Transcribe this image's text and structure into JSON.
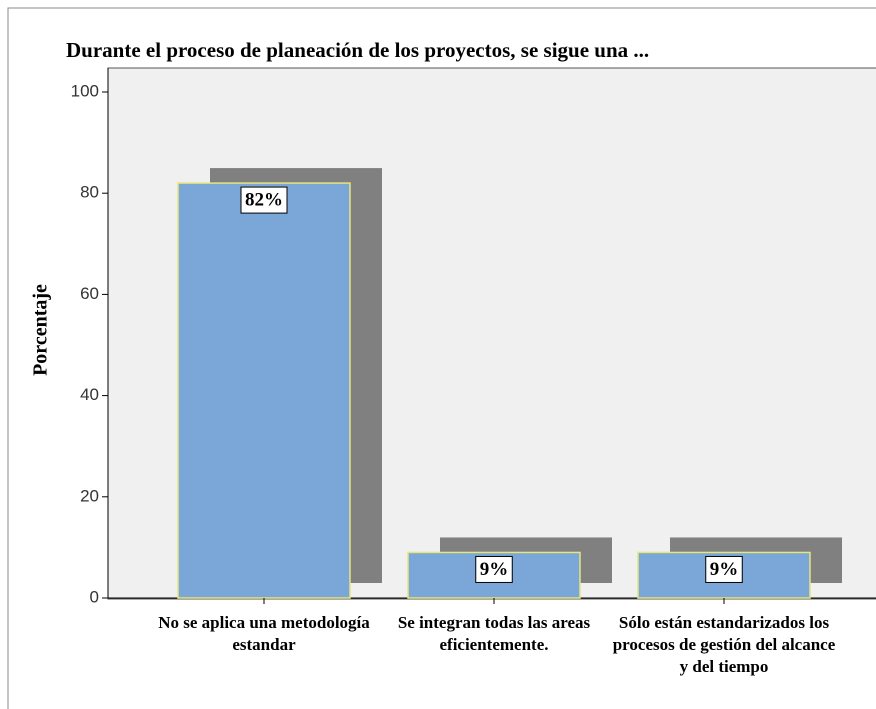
{
  "chart_data": {
    "type": "bar",
    "title": "Durante el proceso de planeación de los proyectos, se sigue una ...",
    "y_label": "Porcentaje",
    "categories": [
      "No se aplica una metodología estandar",
      "Se integran todas las areas eficientemente.",
      "Sólo están estandarizados los procesos de gestión del alcance y del tiempo"
    ],
    "values": [
      82,
      9,
      9
    ],
    "value_labels": [
      "82%",
      "9%",
      "9%"
    ],
    "color": "#7aa7d7",
    "ylim": [
      0,
      100
    ],
    "yticks": [
      0,
      20,
      40,
      60,
      80,
      100
    ],
    "grid": false
  }
}
